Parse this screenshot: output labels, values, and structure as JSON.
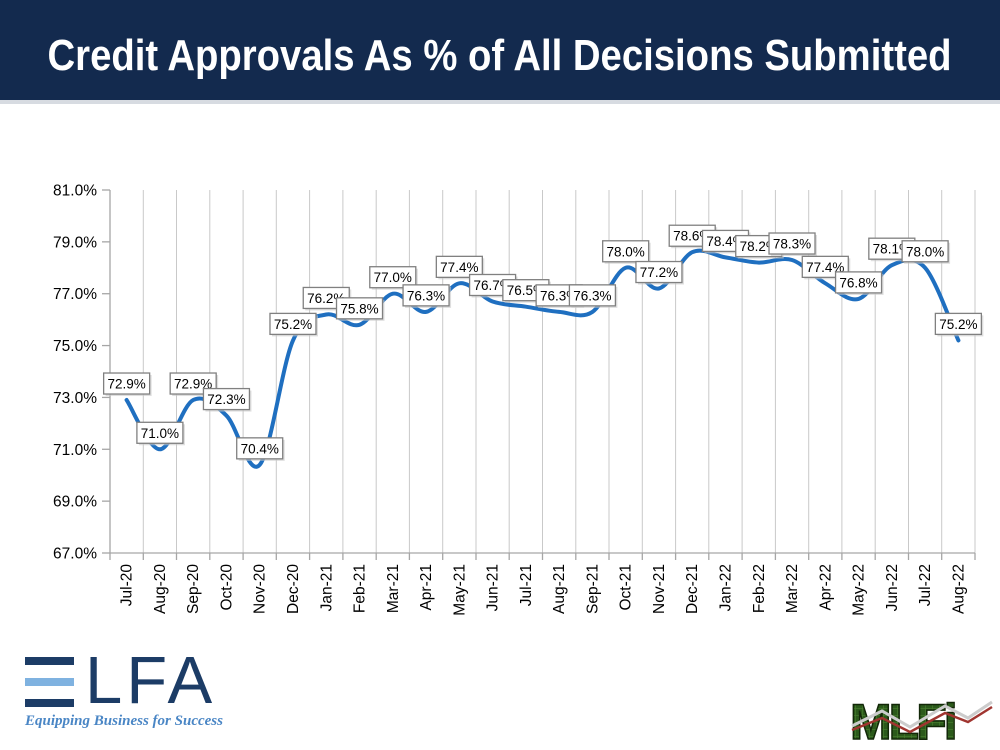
{
  "header": {
    "title": "Credit Approvals As % of All Decisions Submitted",
    "bg_color": "#132a4e",
    "text_color": "#ffffff"
  },
  "chart_data": {
    "type": "line",
    "title": "Credit Approvals As % of All Decisions Submitted",
    "categories": [
      "Jul-20",
      "Aug-20",
      "Sep-20",
      "Oct-20",
      "Nov-20",
      "Dec-20",
      "Jan-21",
      "Feb-21",
      "Mar-21",
      "Apr-21",
      "May-21",
      "Jun-21",
      "Jul-21",
      "Aug-21",
      "Sep-21",
      "Oct-21",
      "Nov-21",
      "Dec-21",
      "Jan-22",
      "Feb-22",
      "Mar-22",
      "Apr-22",
      "May-22",
      "Jun-22",
      "Jul-22",
      "Aug-22"
    ],
    "series": [
      {
        "name": "Credit Approvals As % of All Decisions Submitted",
        "values": [
          72.9,
          71.0,
          72.9,
          72.3,
          70.4,
          75.2,
          76.2,
          75.8,
          77.0,
          76.3,
          77.4,
          76.7,
          76.5,
          76.3,
          76.3,
          78.0,
          77.2,
          78.6,
          78.4,
          78.2,
          78.3,
          77.4,
          76.8,
          78.1,
          78.0,
          75.2
        ]
      }
    ],
    "data_labels": [
      "72.9%",
      "71.0%",
      "72.9%",
      "72.3%",
      "70.4%",
      "75.2%",
      "76.2%",
      "75.8%",
      "77.0%",
      "76.3%",
      "77.4%",
      "76.7%",
      "76.5%",
      "76.3%",
      "76.3%",
      "78.0%",
      "77.2%",
      "78.6%",
      "78.4%",
      "78.2%",
      "78.3%",
      "77.4%",
      "76.8%",
      "78.1%",
      "78.0%",
      "75.2%"
    ],
    "ylim": [
      67.0,
      81.0
    ],
    "ytick_step": 2.0,
    "ytick_labels": [
      "67.0%",
      "69.0%",
      "71.0%",
      "73.0%",
      "75.0%",
      "77.0%",
      "79.0%",
      "81.0%"
    ],
    "xlabel": "",
    "ylabel": "",
    "grid": "vertical-only",
    "legend": "none",
    "smooth_line": true,
    "line_color": "#1f6fc0",
    "gridline_color": "#c9c9c9",
    "axis_color": "#a6a6a6",
    "tick_text_color": "#000000",
    "label_box_border": "#808080",
    "label_box_fill": "#ffffff"
  },
  "footer": {
    "elfa": {
      "letters_rest": "LFA",
      "tagline": "Equipping Business for Success",
      "navy": "#1c3c66",
      "light_blue": "#7fb2e0",
      "tagline_color": "#4a86c5"
    },
    "mlfi": {
      "text": "MLFi",
      "green_dark": "#1e3d12",
      "green_mid": "#33641f",
      "grid_line": "#4a8030",
      "chart_line_silver": "#cccccc",
      "chart_line_red": "#a03530"
    }
  }
}
